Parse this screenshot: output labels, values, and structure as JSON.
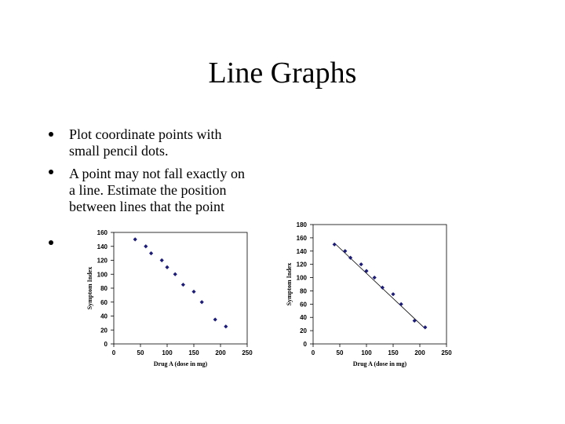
{
  "slide": {
    "title": "Line Graphs",
    "bullets": [
      [
        "Plot coordinate points with",
        "small pencil dots."
      ],
      [
        "A point may not fall exactly on",
        "a line. Estimate the position",
        "between lines that the point"
      ]
    ]
  },
  "chart_data": [
    {
      "type": "scatter",
      "x_label": "Drug A (dose in mg)",
      "y_label": "Symptom Index",
      "xlim": [
        0,
        250
      ],
      "xticks": [
        0,
        50,
        100,
        150,
        200,
        250
      ],
      "ylim": [
        0,
        160
      ],
      "yticks": [
        0,
        20,
        40,
        60,
        80,
        100,
        120,
        140,
        160
      ],
      "series": [
        {
          "color": "#1c1c78",
          "x": [
            40,
            60,
            70,
            90,
            100,
            115,
            130,
            150,
            165,
            190,
            210
          ],
          "values": [
            150,
            140,
            130,
            120,
            110,
            100,
            85,
            75,
            60,
            35,
            25
          ]
        }
      ]
    },
    {
      "type": "scatter",
      "x_label": "Drug A (dose in mg)",
      "y_label": "Symptom Index",
      "xlim": [
        0,
        250
      ],
      "xticks": [
        0,
        50,
        100,
        150,
        200,
        250
      ],
      "ylim": [
        0,
        180
      ],
      "yticks": [
        0,
        20,
        40,
        60,
        80,
        100,
        120,
        140,
        160,
        180
      ],
      "series": [
        {
          "color": "#1c1c78",
          "x": [
            40,
            60,
            70,
            90,
            100,
            115,
            130,
            150,
            165,
            190,
            210
          ],
          "values": [
            150,
            140,
            130,
            120,
            110,
            100,
            85,
            75,
            60,
            35,
            25
          ]
        }
      ],
      "trendline": {
        "x": [
          40,
          210
        ],
        "values": [
          152,
          23
        ]
      }
    }
  ]
}
